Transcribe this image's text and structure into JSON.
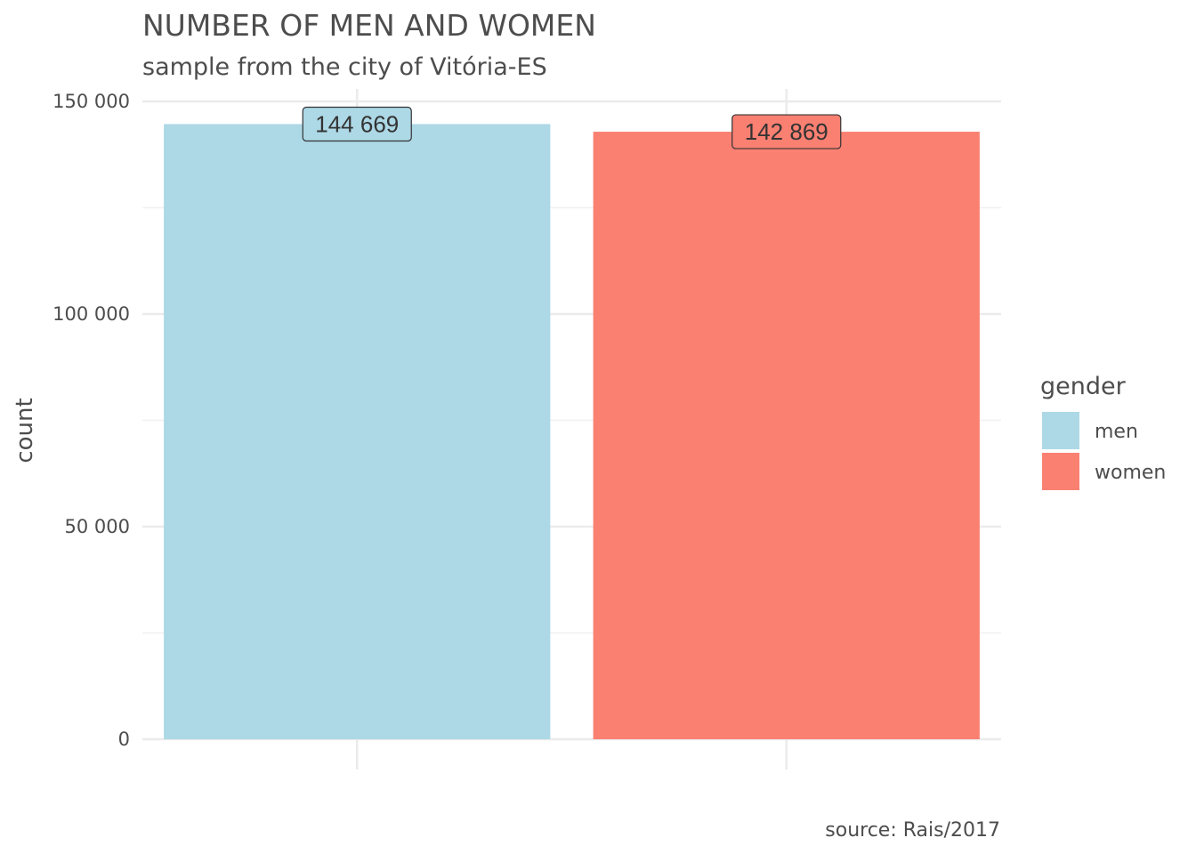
{
  "chart_data": {
    "type": "bar",
    "title": "NUMBER OF MEN AND WOMEN",
    "subtitle": "sample from the city of Vitória-ES",
    "caption": "source: Rais/2017",
    "xlabel": "",
    "ylabel": "count",
    "categories": [
      "men",
      "women"
    ],
    "values": [
      144669,
      142869
    ],
    "value_labels": [
      "144 669",
      "142 869"
    ],
    "colors": [
      "#add8e6",
      "#fa8072"
    ],
    "ylim": [
      0,
      150000
    ],
    "y_ticks": [
      0,
      50000,
      100000,
      150000
    ],
    "y_tick_labels": [
      "0",
      "50 000",
      "100 000",
      "150 000"
    ],
    "grid": true,
    "legend": {
      "title": "gender",
      "placement": "right",
      "entries": [
        {
          "label": "men",
          "color": "#add8e6"
        },
        {
          "label": "women",
          "color": "#fa8072"
        }
      ]
    }
  }
}
